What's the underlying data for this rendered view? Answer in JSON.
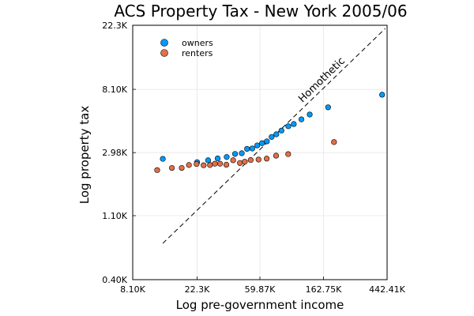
{
  "chart_data": {
    "type": "scatter",
    "title": "ACS Property Tax - New York 2005/06",
    "xlabel": "Log pre-government income",
    "ylabel": "Log property tax",
    "x_scale": "log",
    "y_scale": "log",
    "xlim": [
      8100,
      442410
    ],
    "ylim": [
      400,
      22300
    ],
    "x_ticks": [
      {
        "value": 8100,
        "label": "8.10K"
      },
      {
        "value": 22300,
        "label": "22.3K"
      },
      {
        "value": 59870,
        "label": "59.87K"
      },
      {
        "value": 162750,
        "label": "162.75K"
      },
      {
        "value": 442410,
        "label": "442.41K"
      }
    ],
    "y_ticks": [
      {
        "value": 400,
        "label": "0.40K"
      },
      {
        "value": 1100,
        "label": "1.10K"
      },
      {
        "value": 2980,
        "label": "2.98K"
      },
      {
        "value": 8100,
        "label": "8.10K"
      },
      {
        "value": 22300,
        "label": "22.3K"
      }
    ],
    "grid": true,
    "legend_position": "top-left",
    "series": [
      {
        "name": "owners",
        "color": "#009AFA",
        "points": [
          [
            13000,
            2700
          ],
          [
            22300,
            2560
          ],
          [
            26500,
            2640
          ],
          [
            30800,
            2720
          ],
          [
            35500,
            2780
          ],
          [
            40500,
            2920
          ],
          [
            45000,
            2950
          ],
          [
            48900,
            3160
          ],
          [
            53100,
            3180
          ],
          [
            57400,
            3340
          ],
          [
            62000,
            3460
          ],
          [
            66800,
            3560
          ],
          [
            72000,
            3820
          ],
          [
            77500,
            3980
          ],
          [
            84000,
            4220
          ],
          [
            93600,
            4520
          ],
          [
            102000,
            4680
          ],
          [
            115000,
            5040
          ],
          [
            131000,
            5440
          ],
          [
            175000,
            6100
          ],
          [
            409000,
            7440
          ]
        ]
      },
      {
        "name": "renters",
        "color": "#E36F47",
        "points": [
          [
            11900,
            2260
          ],
          [
            15000,
            2340
          ],
          [
            17500,
            2340
          ],
          [
            19600,
            2450
          ],
          [
            22100,
            2490
          ],
          [
            24700,
            2440
          ],
          [
            27300,
            2450
          ],
          [
            29500,
            2500
          ],
          [
            32000,
            2500
          ],
          [
            35300,
            2460
          ],
          [
            39300,
            2640
          ],
          [
            43700,
            2530
          ],
          [
            47200,
            2580
          ],
          [
            51800,
            2650
          ],
          [
            58600,
            2670
          ],
          [
            66600,
            2710
          ],
          [
            77200,
            2840
          ],
          [
            93400,
            2910
          ],
          [
            192000,
            3520
          ]
        ]
      }
    ],
    "reference_line": {
      "label": "Homothetic",
      "style": "dashed",
      "color": "#000000",
      "points": [
        [
          13000,
          710
        ],
        [
          430000,
          21200
        ]
      ]
    }
  }
}
